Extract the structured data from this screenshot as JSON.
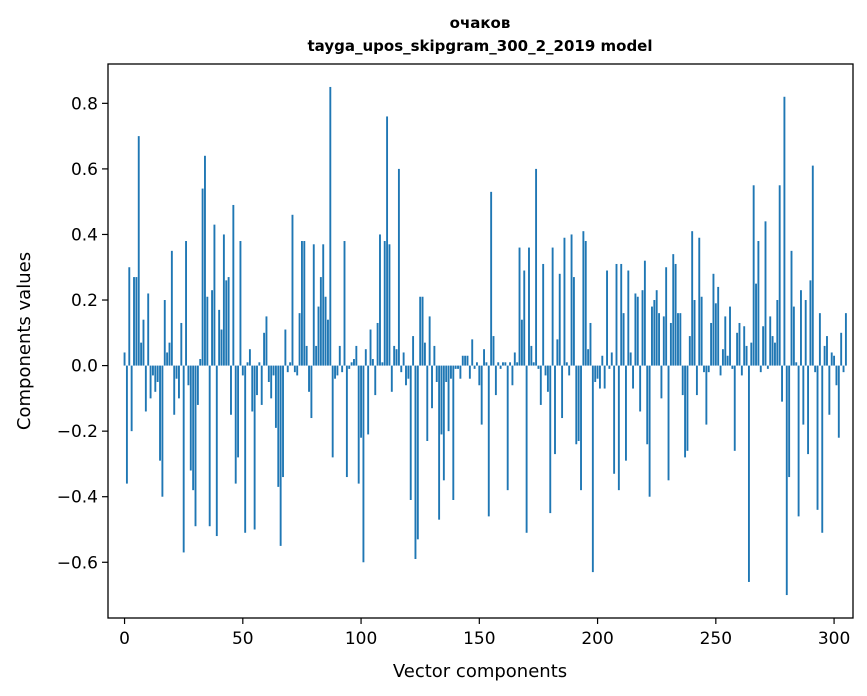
{
  "chart_data": {
    "type": "bar",
    "title": "очаков",
    "subtitle": "tayga_upos_skipgram_300_2_2019 model",
    "xlabel": "Vector components",
    "ylabel": "Components values",
    "xlim": [
      -7,
      308
    ],
    "ylim": [
      -0.77,
      0.92
    ],
    "xticks": [
      0,
      50,
      100,
      150,
      200,
      250,
      300
    ],
    "yticks": [
      -0.6,
      -0.4,
      -0.2,
      0.0,
      0.2,
      0.4,
      0.6,
      0.8
    ],
    "xtick_labels": [
      "0",
      "50",
      "100",
      "150",
      "200",
      "250",
      "300"
    ],
    "ytick_labels": [
      "−0.6",
      "−0.4",
      "−0.2",
      "0.0",
      "0.2",
      "0.4",
      "0.6",
      "0.8"
    ],
    "bar_color": "#1f77b4",
    "values": [
      0.04,
      -0.36,
      0.3,
      -0.2,
      0.27,
      0.27,
      0.7,
      0.07,
      0.14,
      -0.14,
      0.22,
      -0.1,
      -0.03,
      -0.08,
      -0.05,
      -0.29,
      -0.4,
      0.2,
      0.04,
      0.07,
      0.35,
      -0.15,
      -0.04,
      -0.1,
      0.13,
      -0.57,
      0.38,
      -0.06,
      -0.32,
      -0.38,
      -0.49,
      -0.12,
      0.02,
      0.54,
      0.64,
      0.21,
      -0.49,
      0.23,
      0.43,
      -0.52,
      0.17,
      0.11,
      0.4,
      0.26,
      0.27,
      -0.15,
      0.49,
      -0.36,
      -0.28,
      0.38,
      -0.03,
      -0.51,
      0.01,
      0.05,
      -0.14,
      -0.5,
      -0.09,
      0.01,
      -0.12,
      0.1,
      0.15,
      -0.05,
      -0.1,
      -0.03,
      -0.19,
      -0.37,
      -0.55,
      -0.34,
      0.11,
      -0.02,
      0.01,
      0.46,
      -0.02,
      -0.03,
      0.16,
      0.38,
      0.38,
      0.06,
      -0.08,
      -0.16,
      0.37,
      0.06,
      0.18,
      0.27,
      0.37,
      0.21,
      0.14,
      0.85,
      -0.28,
      -0.04,
      -0.03,
      0.06,
      -0.02,
      0.38,
      -0.34,
      -0.01,
      0.01,
      0.02,
      0.06,
      -0.36,
      -0.22,
      -0.6,
      0.05,
      -0.21,
      0.11,
      0.02,
      -0.09,
      0.13,
      0.4,
      0.01,
      0.38,
      0.76,
      0.37,
      -0.08,
      0.06,
      0.05,
      0.6,
      -0.02,
      0.04,
      -0.06,
      -0.04,
      -0.41,
      0.09,
      -0.59,
      -0.53,
      0.21,
      0.21,
      0.07,
      -0.23,
      0.15,
      -0.13,
      0.06,
      -0.05,
      -0.47,
      -0.21,
      -0.35,
      -0.05,
      -0.2,
      -0.04,
      -0.41,
      -0.01,
      -0.01,
      -0.04,
      0.03,
      0.03,
      0.03,
      -0.04,
      0.08,
      -0.01,
      0.01,
      -0.06,
      -0.18,
      0.05,
      0.01,
      -0.46,
      0.53,
      0.09,
      -0.09,
      0.01,
      -0.01,
      0.01,
      0.01,
      -0.38,
      0.01,
      -0.06,
      0.04,
      0.01,
      0.36,
      0.14,
      0.29,
      -0.51,
      0.36,
      0.06,
      0.01,
      0.6,
      -0.01,
      -0.12,
      0.31,
      -0.03,
      -0.08,
      -0.45,
      0.36,
      -0.27,
      0.08,
      0.28,
      -0.16,
      0.39,
      0.01,
      -0.03,
      0.4,
      0.27,
      -0.24,
      -0.23,
      -0.38,
      0.41,
      0.38,
      0.05,
      0.13,
      -0.63,
      -0.05,
      -0.04,
      -0.07,
      0.03,
      -0.07,
      0.29,
      -0.01,
      0.04,
      -0.33,
      0.31,
      -0.38,
      0.31,
      0.16,
      -0.29,
      0.29,
      0.04,
      -0.07,
      0.22,
      0.21,
      -0.14,
      0.23,
      0.32,
      -0.24,
      -0.4,
      0.18,
      0.2,
      0.23,
      0.16,
      -0.1,
      0.15,
      0.3,
      -0.35,
      0.13,
      0.34,
      0.31,
      0.16,
      0.16,
      -0.09,
      -0.28,
      -0.26,
      0.09,
      0.41,
      0.2,
      -0.09,
      0.39,
      0.21,
      -0.02,
      -0.18,
      -0.02,
      0.13,
      0.28,
      0.19,
      0.24,
      -0.03,
      0.05,
      0.15,
      0.03,
      0.18,
      -0.01,
      -0.26,
      0.1,
      0.13,
      -0.03,
      0.12,
      0.06,
      -0.66,
      0.07,
      0.55,
      0.25,
      0.38,
      -0.02,
      0.12,
      0.44,
      -0.01,
      0.15,
      0.09,
      0.07,
      0.2,
      0.55,
      -0.11,
      0.82,
      -0.7,
      -0.34,
      0.35,
      0.18,
      0.01,
      -0.46,
      0.23,
      -0.18,
      0.2,
      -0.27,
      0.26,
      0.61,
      -0.02,
      -0.44,
      0.16,
      -0.51,
      0.06,
      0.09,
      -0.15,
      0.04,
      0.03,
      -0.06,
      -0.22,
      0.1,
      -0.02,
      0.16
    ]
  }
}
